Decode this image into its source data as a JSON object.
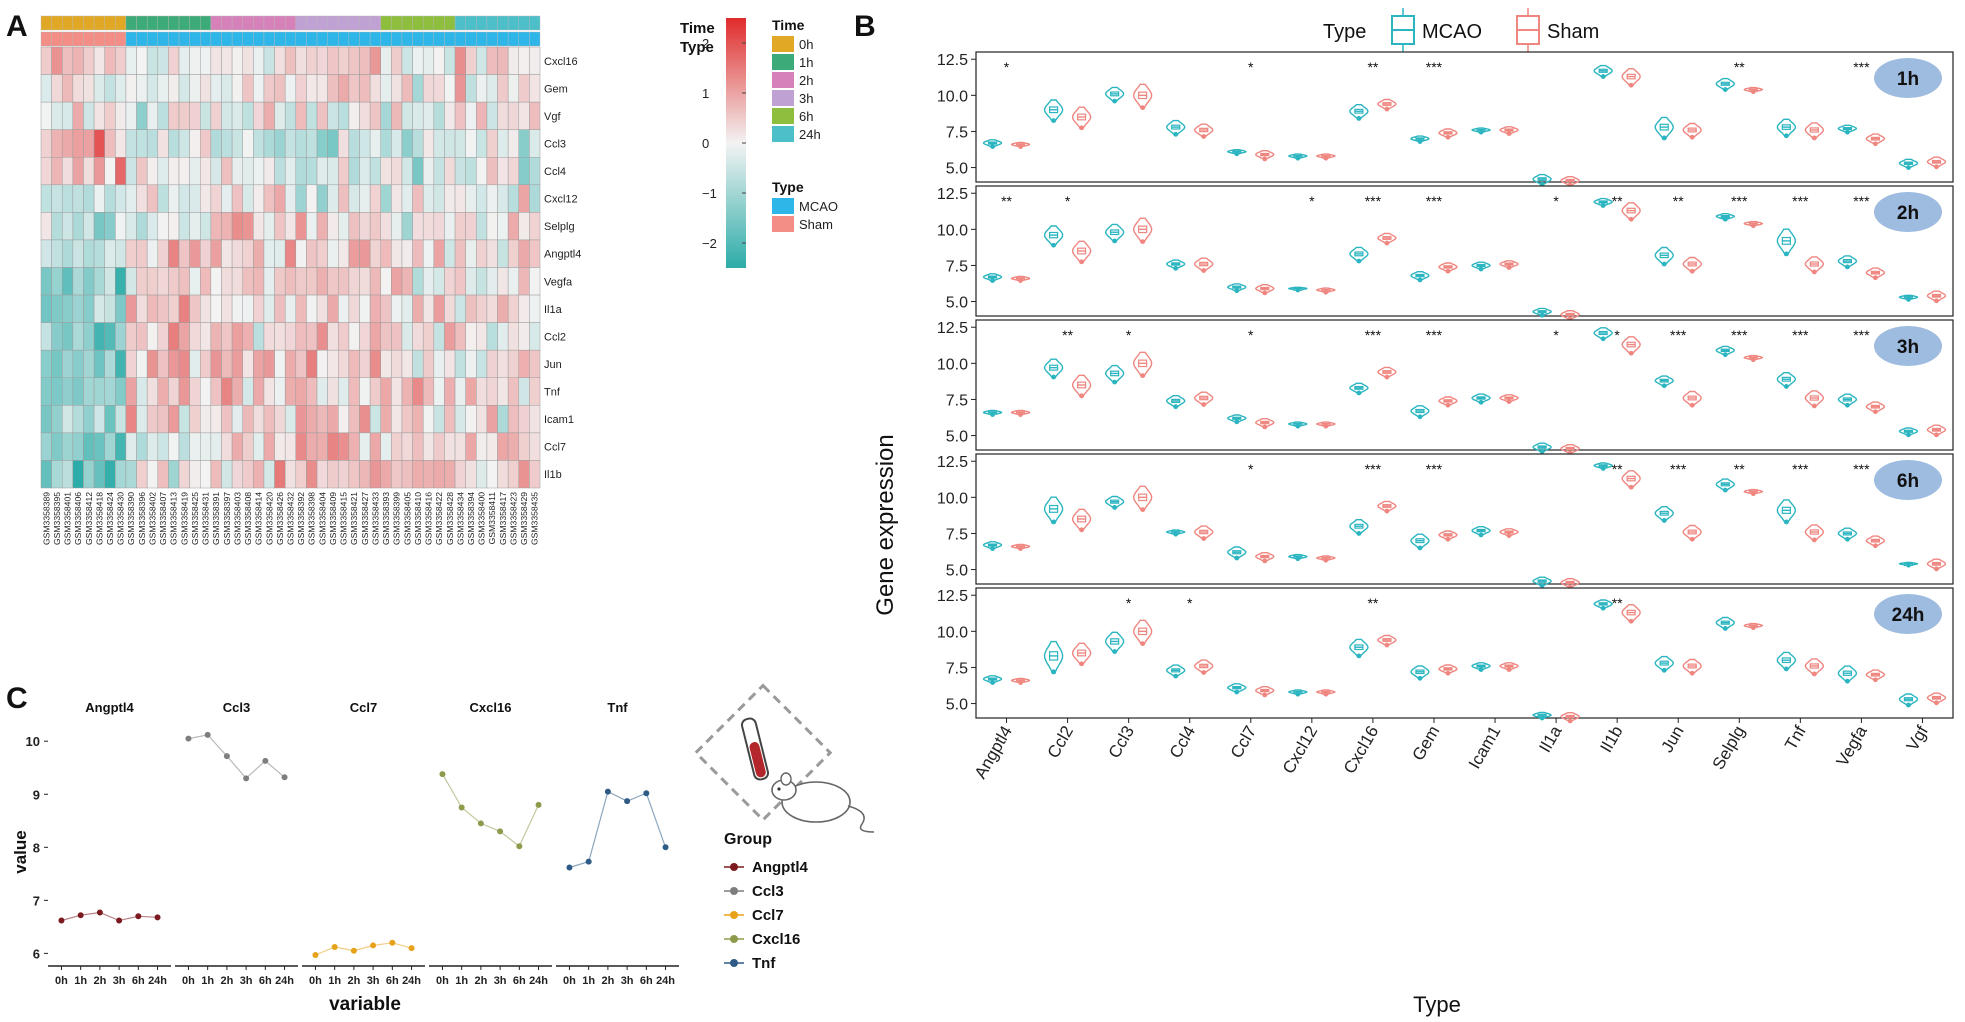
{
  "panel_labels": {
    "a": "A",
    "b": "B",
    "c": "C"
  },
  "heatmap": {
    "genes": [
      "Cxcl16",
      "Gem",
      "Vgf",
      "Ccl3",
      "Ccl4",
      "Cxcl12",
      "Selplg",
      "Angptl4",
      "Vegfa",
      "Il1a",
      "Ccl2",
      "Jun",
      "Tnf",
      "Icam1",
      "Ccl7",
      "Il1b"
    ],
    "samples": [
      "GSM3358389",
      "GSM3358395",
      "GSM3358401",
      "GSM3358406",
      "GSM3358412",
      "GSM3358418",
      "GSM3358424",
      "GSM3358430",
      "GSM3358390",
      "GSM3358396",
      "GSM3358402",
      "GSM3358407",
      "GSM3358413",
      "GSM3358419",
      "GSM3358425",
      "GSM3358431",
      "GSM3358391",
      "GSM3358397",
      "GSM3358403",
      "GSM3358408",
      "GSM3358414",
      "GSM3358420",
      "GSM3358426",
      "GSM3358432",
      "GSM3358392",
      "GSM3358398",
      "GSM3358404",
      "GSM3358409",
      "GSM3358415",
      "GSM3358421",
      "GSM3358427",
      "GSM3358433",
      "GSM3358393",
      "GSM3358399",
      "GSM3358405",
      "GSM3358410",
      "GSM3358416",
      "GSM3358422",
      "GSM3358428",
      "GSM3358434",
      "GSM3358394",
      "GSM3358400",
      "GSM3358411",
      "GSM3358417",
      "GSM3358423",
      "GSM3358429",
      "GSM3358435"
    ],
    "time_groups": [
      {
        "label": "0h",
        "count": 8,
        "color": "#E1A825"
      },
      {
        "label": "1h",
        "count": 8,
        "color": "#3DAA7A"
      },
      {
        "label": "2h",
        "count": 8,
        "color": "#D681B9"
      },
      {
        "label": "3h",
        "count": 8,
        "color": "#BFA1D3"
      },
      {
        "label": "6h",
        "count": 7,
        "color": "#8DBE3E"
      },
      {
        "label": "24h",
        "count": 8,
        "color": "#4CBFC9"
      }
    ],
    "type_groups": [
      {
        "label": "Sham",
        "count": 8,
        "color": "#F28E86"
      },
      {
        "label": "MCAO",
        "count": 39,
        "color": "#2EB6E8"
      }
    ],
    "annotation_labels": {
      "time": "Time",
      "type": "Type"
    },
    "legend": {
      "scale_ticks": [
        "2",
        "1",
        "0",
        "−1",
        "−2"
      ],
      "scale_values": [
        2,
        1,
        0,
        -1,
        -2
      ],
      "time_title": "Time",
      "type_title": "Type",
      "time_items": [
        "0h",
        "1h",
        "2h",
        "3h",
        "6h",
        "24h"
      ],
      "type_items": [
        "MCAO",
        "Sham"
      ]
    },
    "colors": {
      "low": "#2CACA8",
      "mid": "#F3F3F3",
      "high": "#E02B2B"
    },
    "rows": [
      {
        "sham": 1.0,
        "p": [
          -0.6,
          -0.2,
          0.3,
          0.4,
          -0.1,
          0.2
        ]
      },
      {
        "sham": 0.6,
        "p": [
          -0.4,
          -0.2,
          0.2,
          0.2,
          -0.1,
          0.3
        ]
      },
      {
        "sham": 0.4,
        "p": [
          -0.5,
          -0.3,
          -0.1,
          0.3,
          0.1,
          0.2
        ]
      },
      {
        "sham": 1.1,
        "p": [
          -0.4,
          -0.3,
          -0.5,
          -0.6,
          -0.5,
          -0.4
        ]
      },
      {
        "sham": 1.0,
        "p": [
          -0.4,
          -0.3,
          -0.3,
          -0.4,
          -0.4,
          -0.4
        ]
      },
      {
        "sham": -0.3,
        "p": [
          0.0,
          0.1,
          0.2,
          0.1,
          0.0,
          -0.1
        ]
      },
      {
        "sham": -0.6,
        "p": [
          -0.2,
          0.1,
          0.3,
          0.2,
          0.0,
          0.2
        ]
      },
      {
        "sham": -0.6,
        "p": [
          -0.1,
          0.6,
          0.6,
          0.4,
          0.3,
          0.1
        ]
      },
      {
        "sham": -0.8,
        "p": [
          -0.3,
          0.4,
          0.5,
          0.4,
          0.3,
          0.2
        ]
      },
      {
        "sham": -0.6,
        "p": [
          -0.3,
          0.3,
          0.3,
          0.4,
          0.2,
          0.1
        ]
      },
      {
        "sham": -0.8,
        "p": [
          -0.5,
          0.3,
          0.5,
          0.6,
          0.4,
          0.2
        ]
      },
      {
        "sham": -0.8,
        "p": [
          -0.4,
          0.5,
          0.6,
          0.6,
          0.3,
          0.0
        ]
      },
      {
        "sham": -0.8,
        "p": [
          -0.4,
          0.5,
          0.6,
          0.6,
          0.4,
          0.1
        ]
      },
      {
        "sham": -0.7,
        "p": [
          -0.3,
          0.3,
          0.5,
          0.6,
          0.4,
          0.0
        ]
      },
      {
        "sham": -0.8,
        "p": [
          -0.6,
          0.0,
          0.3,
          0.6,
          0.6,
          0.2
        ]
      },
      {
        "sham": -1.0,
        "p": [
          -0.6,
          0.1,
          0.3,
          0.5,
          0.7,
          0.4
        ]
      }
    ],
    "noise_seed": 12345
  },
  "violin": {
    "legend_title": "Type",
    "legend_items": [
      {
        "label": "MCAO",
        "color": "#2BB5C0"
      },
      {
        "label": "Sham",
        "color": "#EF8680"
      }
    ],
    "ylabel": "Gene expression",
    "xlabel": "Type",
    "y_ticks": [
      "12.5",
      "10.0",
      "7.5",
      "5.0"
    ],
    "y_tick_values": [
      12.5,
      10,
      7.5,
      5
    ],
    "ylim": [
      4,
      13
    ],
    "genes": [
      "Angptl4",
      "Ccl2",
      "Ccl3",
      "Ccl4",
      "Ccl7",
      "Cxcl12",
      "Cxcl16",
      "Gem",
      "Icam1",
      "Il1a",
      "Il1b",
      "Jun",
      "Selplg",
      "Tnf",
      "Vegfa",
      "Vgf"
    ],
    "sham_medians": [
      6.6,
      8.5,
      10.0,
      7.6,
      5.9,
      5.8,
      9.4,
      7.4,
      7.6,
      4.1,
      11.3,
      7.6,
      10.4,
      7.6,
      7.0,
      5.4
    ],
    "sham_spread": [
      0.3,
      1.5,
      1.7,
      0.9,
      0.6,
      0.3,
      0.7,
      0.6,
      0.5,
      0.6,
      1.2,
      1.0,
      0.3,
      1.1,
      0.7,
      0.7
    ],
    "panels": [
      {
        "time": "1h",
        "mcao_medians": [
          6.7,
          9.0,
          10.1,
          7.8,
          6.1,
          5.8,
          8.9,
          7.0,
          7.6,
          4.2,
          11.7,
          7.8,
          10.8,
          7.8,
          7.7,
          5.3
        ],
        "mcao_spread": [
          0.5,
          1.5,
          1.0,
          1.0,
          0.3,
          0.3,
          1.0,
          0.4,
          0.3,
          0.7,
          0.8,
          1.5,
          0.8,
          1.2,
          0.5,
          0.6
        ],
        "sig": [
          "*",
          "",
          "",
          "",
          "*",
          "",
          "**",
          "***",
          "",
          "",
          "",
          "",
          "**",
          "",
          "***",
          ""
        ]
      },
      {
        "time": "2h",
        "mcao_medians": [
          6.7,
          9.6,
          9.8,
          7.6,
          6.0,
          5.9,
          8.3,
          6.8,
          7.5,
          4.3,
          11.9,
          8.2,
          10.9,
          9.2,
          7.8,
          5.3
        ],
        "mcao_spread": [
          0.5,
          1.4,
          1.2,
          0.6,
          0.5,
          0.2,
          1.0,
          0.6,
          0.5,
          0.5,
          0.5,
          1.2,
          0.4,
          1.8,
          0.8,
          0.3
        ],
        "sig": [
          "**",
          "*",
          "",
          "",
          "",
          "*",
          "***",
          "***",
          "",
          "*",
          "**",
          "**",
          "***",
          "***",
          "***",
          ""
        ]
      },
      {
        "time": "3h",
        "mcao_medians": [
          6.6,
          9.7,
          9.3,
          7.4,
          6.2,
          5.8,
          8.3,
          6.7,
          7.6,
          4.2,
          12.1,
          8.8,
          10.9,
          8.9,
          7.5,
          5.3
        ],
        "mcao_spread": [
          0.3,
          1.3,
          1.2,
          0.8,
          0.5,
          0.3,
          0.7,
          0.8,
          0.6,
          0.6,
          0.8,
          0.7,
          0.6,
          1.0,
          0.8,
          0.5
        ],
        "sig": [
          "",
          "**",
          "*",
          "",
          "*",
          "",
          "***",
          "***",
          "",
          "*",
          "*",
          "***",
          "***",
          "***",
          "***",
          ""
        ]
      },
      {
        "time": "6h",
        "mcao_medians": [
          6.7,
          9.2,
          9.7,
          7.6,
          6.2,
          5.9,
          8.0,
          7.0,
          7.7,
          4.2,
          12.2,
          8.9,
          10.9,
          9.1,
          7.5,
          5.4
        ],
        "mcao_spread": [
          0.5,
          1.8,
          0.8,
          0.3,
          0.8,
          0.3,
          1.0,
          1.0,
          0.6,
          0.6,
          0.4,
          1.0,
          0.8,
          1.6,
          0.8,
          0.2
        ],
        "sig": [
          "",
          "",
          "",
          "",
          "*",
          "",
          "***",
          "***",
          "",
          "",
          "**",
          "***",
          "**",
          "***",
          "***",
          ""
        ]
      },
      {
        "time": "24h",
        "mcao_medians": [
          6.7,
          8.3,
          9.3,
          7.3,
          6.1,
          5.8,
          8.9,
          7.2,
          7.6,
          4.2,
          11.9,
          7.8,
          10.6,
          8.0,
          7.1,
          5.3
        ],
        "mcao_spread": [
          0.5,
          2.2,
          1.4,
          0.8,
          0.6,
          0.3,
          1.2,
          0.9,
          0.5,
          0.4,
          0.6,
          1.0,
          0.8,
          1.2,
          1.1,
          0.8
        ],
        "sig": [
          "",
          "",
          "*",
          "*",
          "",
          "",
          "**",
          "",
          "",
          "",
          "**",
          "",
          "",
          "",
          "",
          ""
        ]
      }
    ]
  },
  "chart_data": [
    {
      "type": "line",
      "xlabel": "variable",
      "ylabel": "value",
      "x": [
        "0h",
        "1h",
        "2h",
        "3h",
        "6h",
        "24h"
      ],
      "ylim": [
        5.8,
        10.4
      ],
      "y_ticks": [
        "10",
        "9",
        "8",
        "7",
        "6"
      ],
      "y_tick_values": [
        10,
        9,
        8,
        7,
        6
      ],
      "legend_title": "Group",
      "facets": [
        "Angptl4",
        "Ccl3",
        "Ccl7",
        "Cxcl16",
        "Tnf"
      ],
      "series": [
        {
          "name": "Angptl4",
          "color": "#7B1A1F",
          "values": [
            6.62,
            6.72,
            6.77,
            6.62,
            6.7,
            6.68
          ]
        },
        {
          "name": "Ccl3",
          "color": "#7E7E7E",
          "values": [
            10.05,
            10.12,
            9.72,
            9.3,
            9.63,
            9.32
          ]
        },
        {
          "name": "Ccl7",
          "color": "#E8A21A",
          "values": [
            5.97,
            6.12,
            6.05,
            6.15,
            6.2,
            6.1
          ]
        },
        {
          "name": "Cxcl16",
          "color": "#8E9A4C",
          "values": [
            9.38,
            8.75,
            8.45,
            8.3,
            8.02,
            8.8
          ]
        },
        {
          "name": "Tnf",
          "color": "#2F5C86",
          "values": [
            7.62,
            7.73,
            9.05,
            8.87,
            9.02,
            8.0
          ]
        }
      ]
    }
  ]
}
